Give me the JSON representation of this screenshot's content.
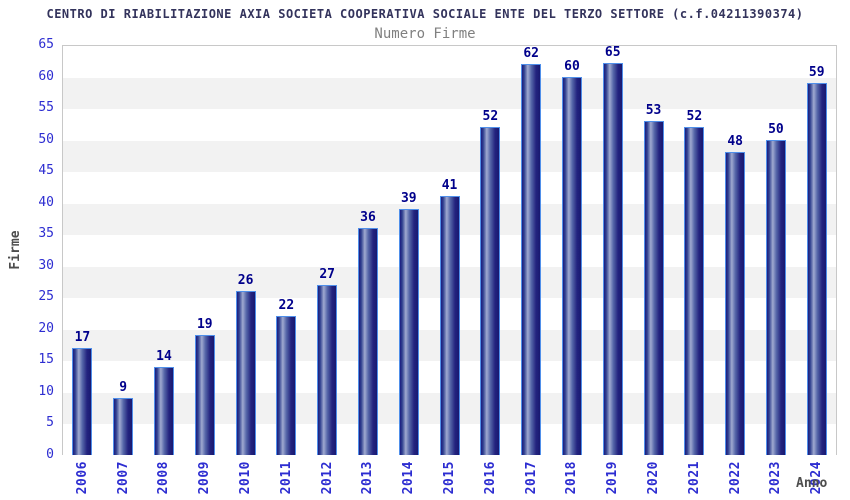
{
  "header": {
    "title": "CENTRO DI RIABILITAZIONE AXIA SOCIETA COOPERATIVA SOCIALE ENTE DEL TERZO SETTORE (c.f.04211390374)",
    "subtitle": "Numero Firme"
  },
  "axes": {
    "y_title": "Firme",
    "x_title": "Anno",
    "y_ticks": [
      0,
      5,
      10,
      15,
      20,
      25,
      30,
      35,
      40,
      45,
      50,
      55,
      60,
      65
    ]
  },
  "chart_data": {
    "type": "bar",
    "title": "Numero Firme",
    "categories": [
      "2006",
      "2007",
      "2008",
      "2009",
      "2010",
      "2011",
      "2012",
      "2013",
      "2014",
      "2015",
      "2016",
      "2017",
      "2018",
      "2019",
      "2020",
      "2021",
      "2022",
      "2023",
      "2024"
    ],
    "values": [
      17,
      9,
      14,
      19,
      26,
      22,
      27,
      36,
      39,
      41,
      52,
      62,
      60,
      65,
      53,
      52,
      48,
      50,
      59
    ],
    "xlabel": "Anno",
    "ylabel": "Firme",
    "ylim": [
      0,
      65
    ],
    "ytick_step": 5,
    "grid": "horizontal-bands",
    "legend_position": "none",
    "data_labels": true
  },
  "colors": {
    "title_text": "#33335c",
    "subtitle_text": "#808080",
    "tick_label": "#2d2dd1",
    "value_label": "#00008b",
    "axis_title": "#4d4d4d",
    "bar_dark": "#1c1c80",
    "bar_highlight": "#9fa9d0",
    "bar_border": "#4f8fea",
    "band_gray": "#f2f2f2",
    "band_white": "#ffffff",
    "plot_border": "#c8c8c8"
  }
}
